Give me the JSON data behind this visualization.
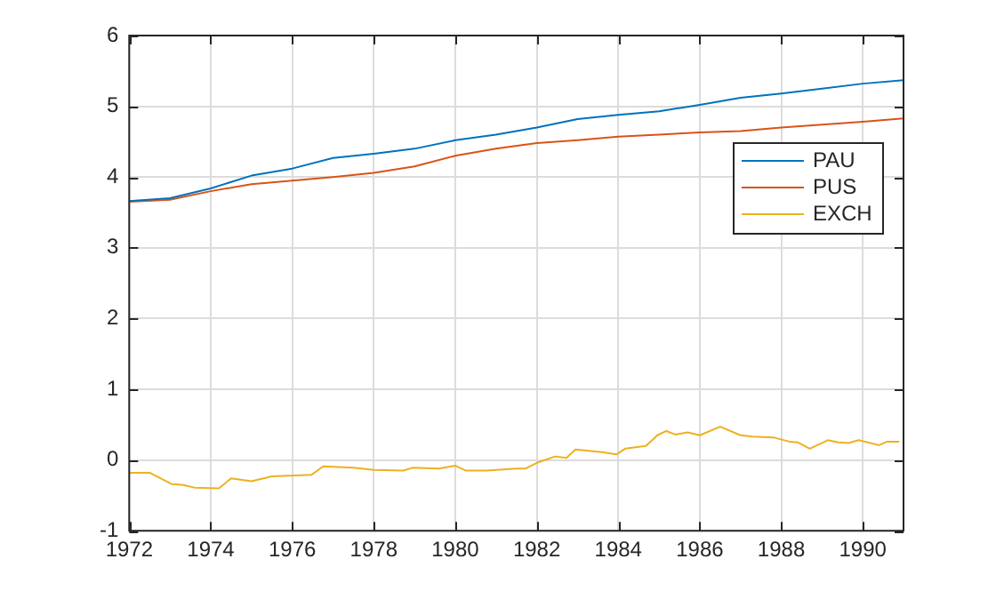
{
  "chart_data": {
    "type": "line",
    "xlim": [
      1972,
      1991
    ],
    "xticks": [
      1972,
      1974,
      1976,
      1978,
      1980,
      1982,
      1984,
      1986,
      1988,
      1990
    ],
    "ylim": [
      -1,
      6
    ],
    "yticks": [
      -1,
      0,
      1,
      2,
      3,
      4,
      5,
      6
    ],
    "grid": true,
    "legend": "top right",
    "marker": "none",
    "line_style": "solid",
    "series": [
      {
        "name": "PAU",
        "color": "#0072bd",
        "x": [
          1972,
          1973,
          1974,
          1975,
          1976,
          1977,
          1978,
          1979,
          1980,
          1981,
          1982,
          1983,
          1984,
          1985,
          1986,
          1987,
          1988,
          1989,
          1990,
          1991
        ],
        "values": [
          3.66,
          3.7,
          3.84,
          4.02,
          4.12,
          4.27,
          4.33,
          4.4,
          4.52,
          4.6,
          4.7,
          4.82,
          4.88,
          4.93,
          5.02,
          5.12,
          5.18,
          5.25,
          5.32,
          5.37
        ]
      },
      {
        "name": "PUS",
        "color": "#d95319",
        "x": [
          1972,
          1973,
          1974,
          1975,
          1976,
          1977,
          1978,
          1979,
          1980,
          1981,
          1982,
          1983,
          1984,
          1985,
          1986,
          1987,
          1988,
          1989,
          1990,
          1991
        ],
        "values": [
          3.65,
          3.68,
          3.8,
          3.9,
          3.95,
          4,
          4.06,
          4.15,
          4.3,
          4.4,
          4.48,
          4.52,
          4.57,
          4.6,
          4.63,
          4.65,
          4.7,
          4.74,
          4.78,
          4.83
        ]
      },
      {
        "name": "EXCH",
        "color": "#edb120",
        "x": [
          1972,
          1972.5,
          1973.04,
          1973.3,
          1973.6,
          1974.2,
          1974.5,
          1975,
          1975.5,
          1976.47,
          1976.76,
          1977.5,
          1978,
          1978.73,
          1978.95,
          1979.6,
          1980,
          1980.26,
          1980.77,
          1981.5,
          1981.73,
          1982,
          1982.45,
          1982.73,
          1982.95,
          1983.6,
          1983.96,
          1984.17,
          1984.68,
          1984.96,
          1985.18,
          1985.4,
          1985.7,
          1986,
          1986.5,
          1987,
          1987.3,
          1987.8,
          1988.2,
          1988.4,
          1988.7,
          1989.14,
          1989.4,
          1989.65,
          1989.9,
          1990.4,
          1990.6,
          1990.9
        ],
        "values": [
          -0.18,
          -0.18,
          -0.34,
          -0.35,
          -0.39,
          -0.4,
          -0.26,
          -0.3,
          -0.23,
          -0.21,
          -0.09,
          -0.11,
          -0.14,
          -0.15,
          -0.11,
          -0.12,
          -0.08,
          -0.15,
          -0.15,
          -0.12,
          -0.12,
          -0.04,
          0.05,
          0.03,
          0.15,
          0.11,
          0.08,
          0.16,
          0.2,
          0.35,
          0.41,
          0.36,
          0.39,
          0.35,
          0.47,
          0.35,
          0.33,
          0.32,
          0.26,
          0.25,
          0.16,
          0.28,
          0.25,
          0.24,
          0.28,
          0.21,
          0.26,
          0.26
        ]
      }
    ]
  }
}
